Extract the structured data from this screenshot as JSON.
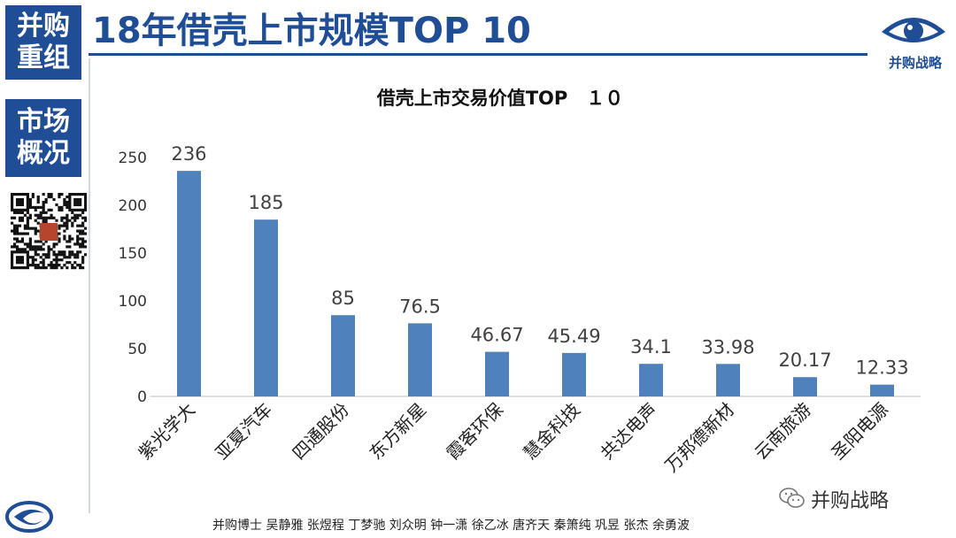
{
  "sidebar": {
    "block1": [
      "并购",
      "重组"
    ],
    "block2": [
      "市场",
      "概况"
    ]
  },
  "header": {
    "title": "18年借壳上市规模TOP 10"
  },
  "logo": {
    "text": "并购战略"
  },
  "watermark": {
    "text": "并购战略"
  },
  "footer": {
    "credits": "并购博士 吴静雅 张煜程 丁梦驰 刘众明 钟一潇 徐乙冰 唐齐天 秦箫纯 巩昱 张杰 余勇波"
  },
  "colors": {
    "brand": "#1f4e96",
    "bar": "#4f81bd"
  },
  "chart_data": {
    "type": "bar",
    "title": "借壳上市交易价值TOP　１０",
    "categories": [
      "紫光学大",
      "亚夏汽车",
      "四通股份",
      "东方新星",
      "霞客环保",
      "慧金科技",
      "共达电声",
      "万邦德新材",
      "云南旅游",
      "圣阳电源"
    ],
    "values": [
      236,
      185,
      85,
      76.5,
      46.67,
      45.49,
      34.1,
      33.98,
      20.17,
      12.33
    ],
    "value_labels": [
      "236",
      "185",
      "85",
      "76.5",
      "46.67",
      "45.49",
      "34.1",
      "33.98",
      "20.17",
      "12.33"
    ],
    "ylim": [
      0,
      250
    ],
    "yticks": [
      0,
      50,
      100,
      150,
      200,
      250
    ],
    "grid": false,
    "legend": "none"
  }
}
